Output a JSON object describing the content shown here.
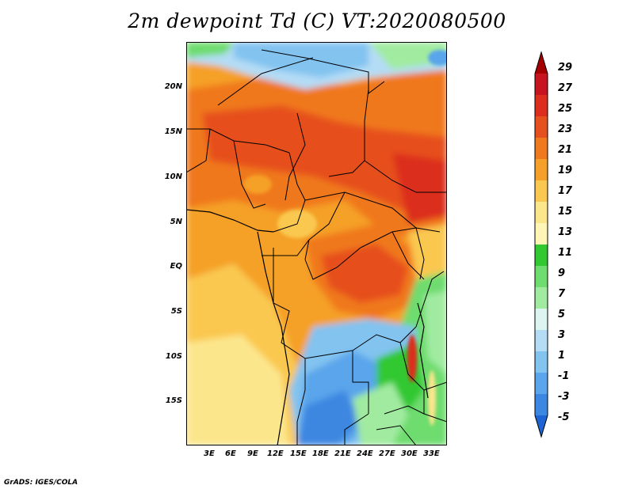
{
  "title": "2m dewpoint Td (C) VT:2020080500",
  "footer": "GrADS: IGES/COLA",
  "map": {
    "latitude_labels": [
      "20N",
      "15N",
      "10N",
      "5N",
      "EQ",
      "5S",
      "10S",
      "15S"
    ],
    "longitude_labels": [
      "3E",
      "6E",
      "9E",
      "12E",
      "15E",
      "18E",
      "21E",
      "24E",
      "27E",
      "30E",
      "33E"
    ]
  },
  "colorbar": {
    "labels": [
      "29",
      "27",
      "25",
      "23",
      "21",
      "19",
      "17",
      "15",
      "13",
      "11",
      "9",
      "7",
      "5",
      "3",
      "1",
      "-1",
      "-3",
      "-5"
    ],
    "colors": [
      "#a50000",
      "#c8141e",
      "#dc2d1e",
      "#e6501e",
      "#f0781e",
      "#f5a028",
      "#fac850",
      "#fce68c",
      "#fff5b4",
      "#32c832",
      "#6edc6e",
      "#a0eba0",
      "#dcf5f0",
      "#b4dcf5",
      "#82c3f0",
      "#5aa5eb",
      "#3c87e1",
      "#1e64d2"
    ]
  }
}
